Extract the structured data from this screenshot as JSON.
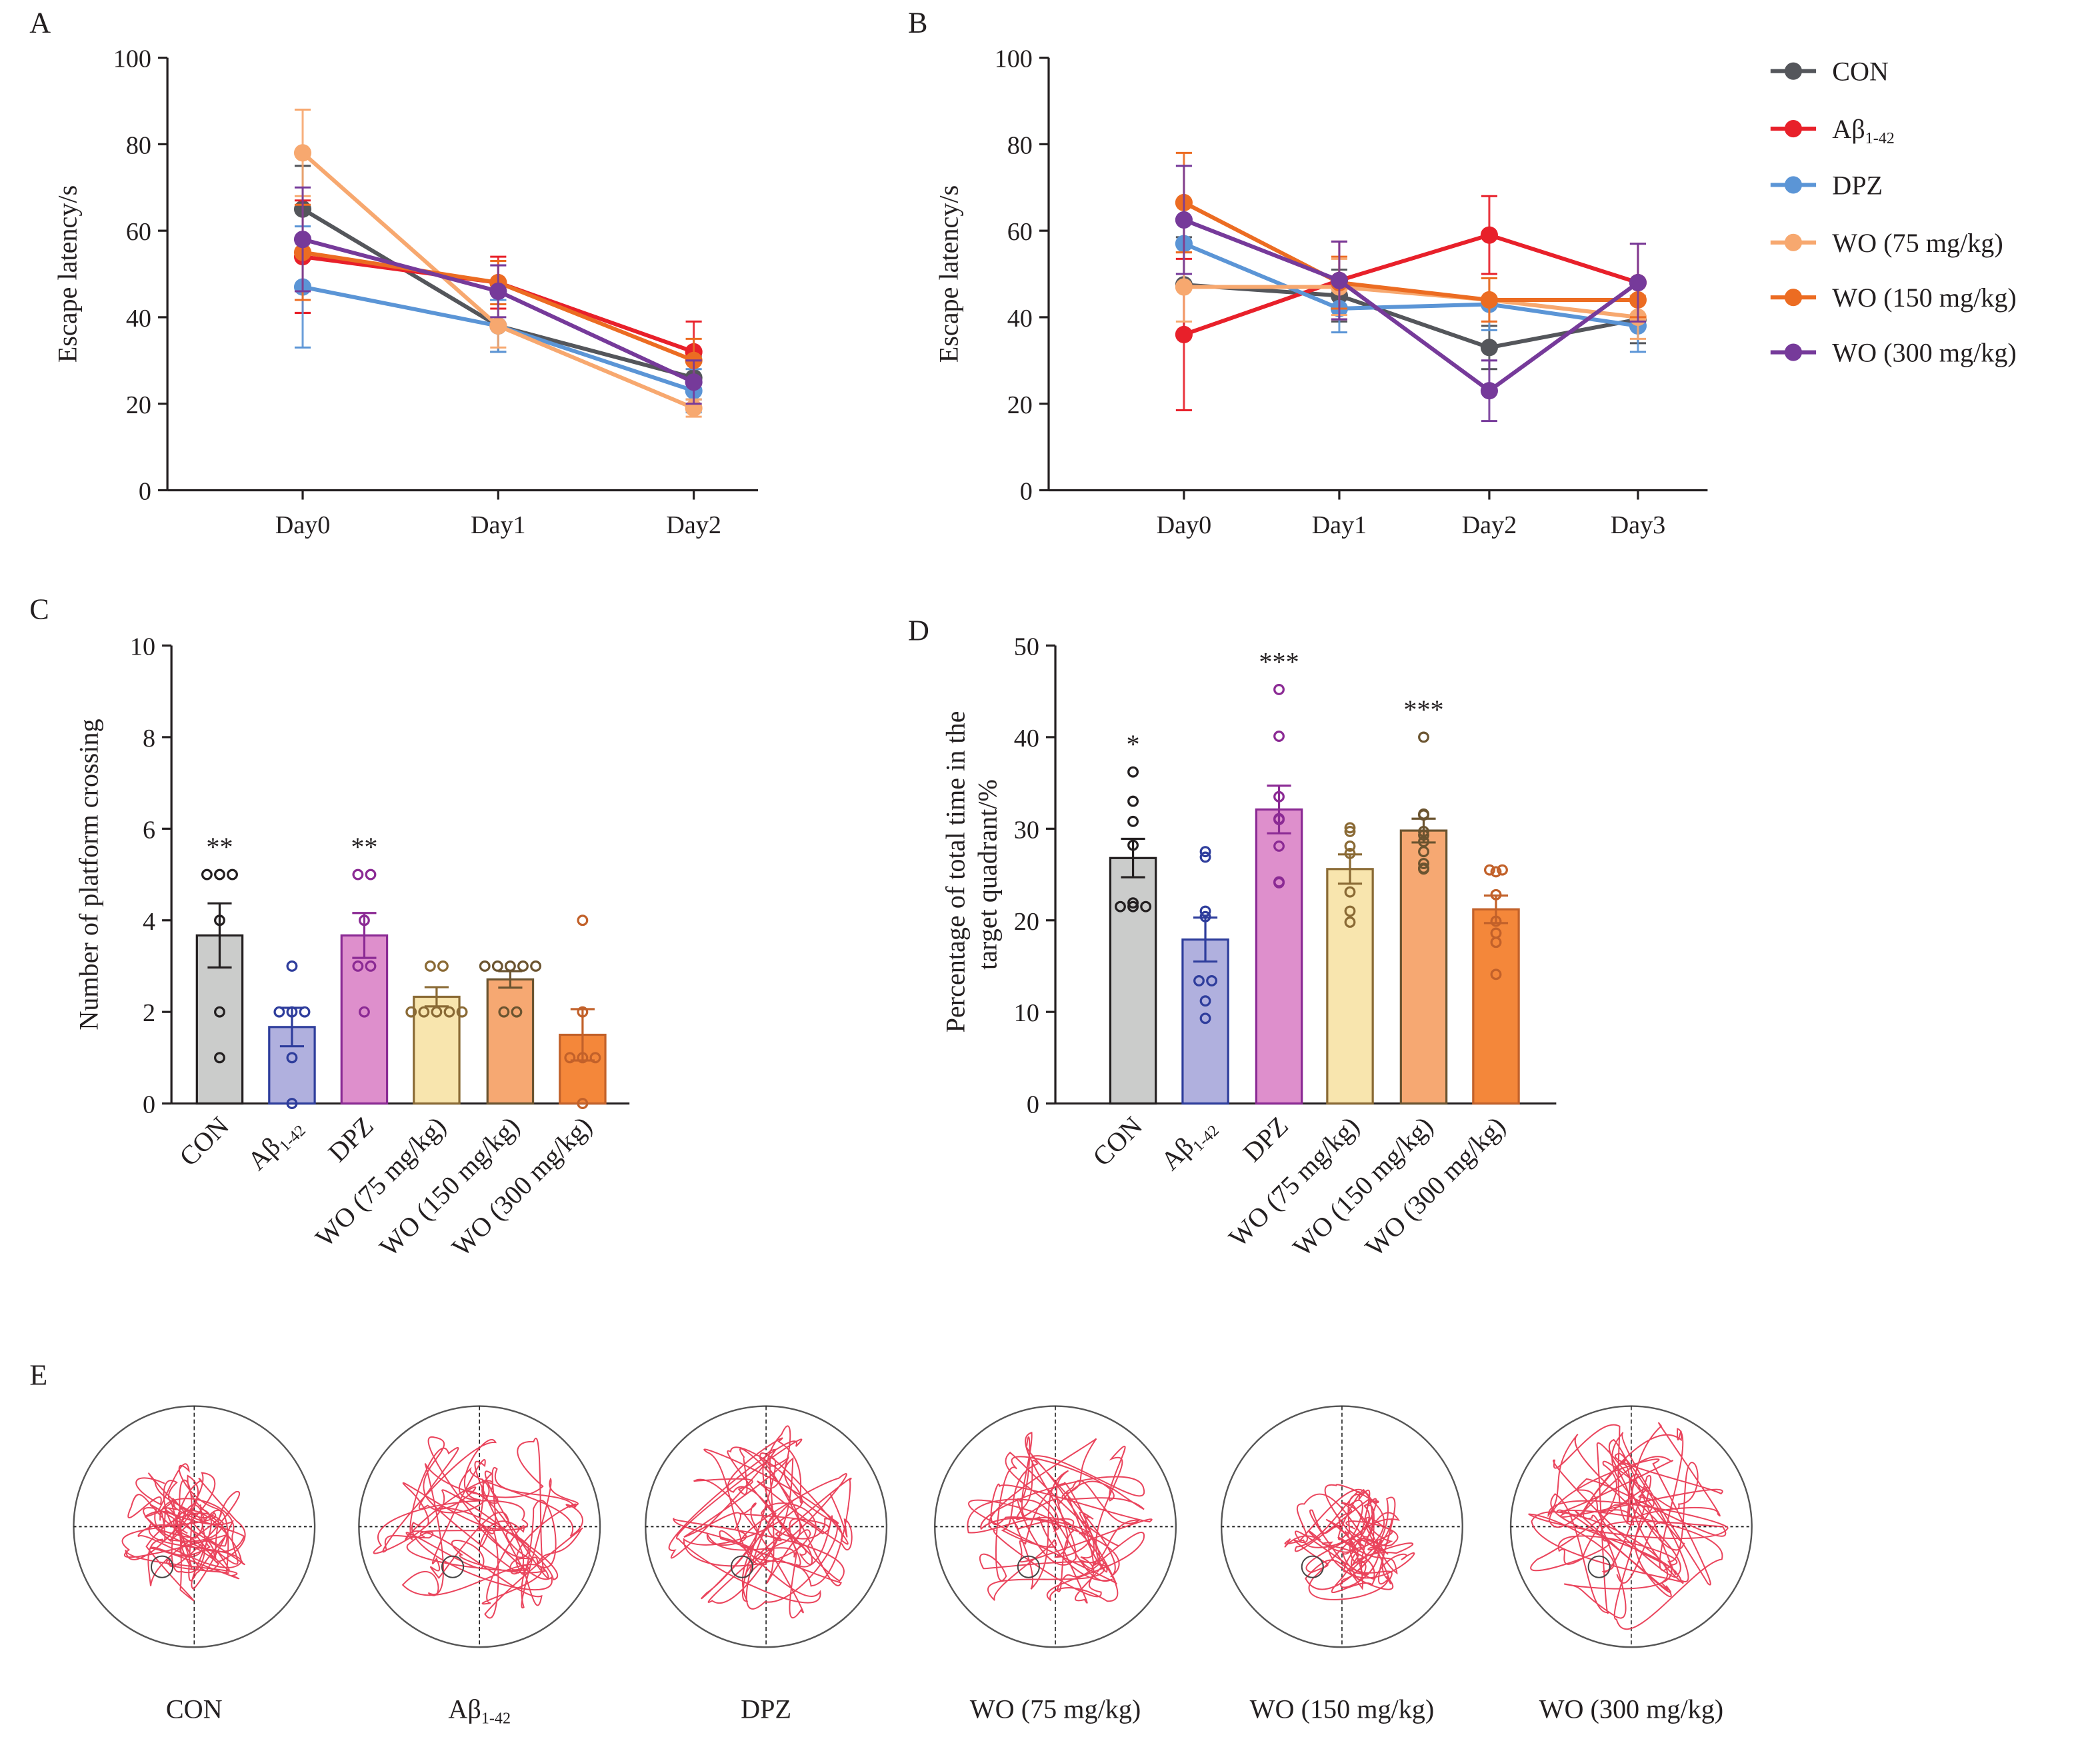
{
  "figure": {
    "panels": [
      "A",
      "B",
      "C",
      "D",
      "E"
    ]
  },
  "groups": [
    {
      "name": "CON",
      "sub": "",
      "color": "#54565b",
      "bar_fill": "#cbcccb",
      "bar_edge": "#231f20",
      "dot": "#231f20"
    },
    {
      "name": "Aβ",
      "sub": "1-42",
      "color": "#e8202a",
      "bar_fill": "#b0b0de",
      "bar_edge": "#2e3d9c",
      "dot": "#2e3d9c"
    },
    {
      "name": "DPZ",
      "sub": "",
      "color": "#5b95d6",
      "bar_fill": "#de8fcc",
      "bar_edge": "#8b2a94",
      "dot": "#8b2a94"
    },
    {
      "name": "WO (75 mg/kg)",
      "sub": "",
      "color": "#f7a86f",
      "bar_fill": "#f8e5ae",
      "bar_edge": "#8a6a35",
      "dot": "#8a6a35"
    },
    {
      "name": "WO (150 mg/kg)",
      "sub": "",
      "color": "#ec6c22",
      "bar_fill": "#f6a872",
      "bar_edge": "#6b5430",
      "dot": "#6b5430"
    },
    {
      "name": "WO (300 mg/kg)",
      "sub": "",
      "color": "#763a9a",
      "bar_fill": "#f4873a",
      "bar_edge": "#c2612a",
      "dot": "#c2612a"
    }
  ],
  "chart_data": [
    {
      "panel": "A",
      "type": "line",
      "title": "",
      "xlabel": "",
      "ylabel": "Escape latency/s",
      "categories": [
        "Day0",
        "Day1",
        "Day2"
      ],
      "ylim": [
        0,
        100
      ],
      "yticks": [
        0,
        20,
        40,
        60,
        80,
        100
      ],
      "grid": false,
      "series": [
        {
          "name": "CON",
          "values": [
            65,
            38,
            26
          ],
          "err": [
            10,
            6,
            5
          ]
        },
        {
          "name": "Aβ1-42",
          "values": [
            54,
            48,
            32
          ],
          "err": [
            13,
            6,
            7
          ]
        },
        {
          "name": "DPZ",
          "values": [
            47,
            38,
            23
          ],
          "err": [
            14,
            6,
            5
          ]
        },
        {
          "name": "WO (75 mg/kg)",
          "values": [
            78,
            38,
            19
          ],
          "err": [
            10,
            5,
            2
          ]
        },
        {
          "name": "WO (150 mg/kg)",
          "values": [
            55,
            48,
            30
          ],
          "err": [
            11,
            5,
            5
          ]
        },
        {
          "name": "WO (300 mg/kg)",
          "values": [
            58,
            46,
            25
          ],
          "err": [
            12,
            6,
            5
          ]
        }
      ]
    },
    {
      "panel": "B",
      "type": "line",
      "title": "",
      "xlabel": "",
      "ylabel": "Escape latency/s",
      "categories": [
        "Day0",
        "Day1",
        "Day2",
        "Day3"
      ],
      "ylim": [
        0,
        100
      ],
      "yticks": [
        0,
        20,
        40,
        60,
        80,
        100
      ],
      "grid": false,
      "legend": "right",
      "series": [
        {
          "name": "CON",
          "values": [
            47.5,
            45,
            33,
            39.5
          ],
          "err": [
            11,
            6,
            5,
            5.5
          ]
        },
        {
          "name": "Aβ1-42",
          "values": [
            36,
            48.5,
            59,
            48
          ],
          "err": [
            17.5,
            9,
            9,
            9
          ]
        },
        {
          "name": "DPZ",
          "values": [
            57,
            42,
            43,
            38
          ],
          "err": [
            10,
            5.5,
            6,
            6
          ]
        },
        {
          "name": "WO (75 mg/kg)",
          "values": [
            47,
            47,
            44,
            40
          ],
          "err": [
            8,
            6.5,
            5,
            5
          ]
        },
        {
          "name": "WO (150 mg/kg)",
          "values": [
            66.5,
            48,
            44,
            44
          ],
          "err": [
            11.5,
            6,
            5,
            4
          ]
        },
        {
          "name": "WO (300 mg/kg)",
          "values": [
            62.5,
            48.5,
            23,
            48
          ],
          "err": [
            12.5,
            9,
            7,
            9
          ]
        }
      ]
    },
    {
      "panel": "C",
      "type": "bar",
      "title": "",
      "xlabel": "",
      "ylabel": "Number of platform crossing",
      "categories": [
        "CON",
        "Aβ1-42",
        "DPZ",
        "WO (75 mg/kg)",
        "WO (150 mg/kg)",
        "WO (300 mg/kg)"
      ],
      "ylim": [
        0,
        10
      ],
      "yticks": [
        0,
        2,
        4,
        6,
        8,
        10
      ],
      "values": [
        3.67,
        1.67,
        3.67,
        2.33,
        2.71,
        1.5
      ],
      "err": [
        0.7,
        0.42,
        0.49,
        0.21,
        0.18,
        0.56
      ],
      "points": [
        [
          5,
          5,
          5,
          4,
          2,
          1
        ],
        [
          3,
          2,
          2,
          2,
          1,
          0
        ],
        [
          5,
          5,
          4,
          3,
          3,
          2
        ],
        [
          3,
          3,
          2,
          2,
          2,
          2,
          2
        ],
        [
          3,
          3,
          3,
          3,
          3,
          2,
          2
        ],
        [
          4,
          2,
          1,
          1,
          1,
          0
        ]
      ],
      "significance": [
        "**",
        "",
        "**",
        "",
        "",
        ""
      ]
    },
    {
      "panel": "D",
      "type": "bar",
      "title": "",
      "xlabel": "",
      "ylabel": "Percentage of total time in the target quadrant/%",
      "ylabel_lines": [
        "Percentage of total time in the",
        "target quadrant/%"
      ],
      "categories": [
        "CON",
        "Aβ1-42",
        "DPZ",
        "WO (75 mg/kg)",
        "WO (150 mg/kg)",
        "WO (300 mg/kg)"
      ],
      "ylim": [
        0,
        50
      ],
      "yticks": [
        0,
        10,
        20,
        30,
        40,
        50
      ],
      "values": [
        26.8,
        17.9,
        32.1,
        25.6,
        29.8,
        21.2
      ],
      "err": [
        2.1,
        2.4,
        2.6,
        1.6,
        1.3,
        1.5
      ],
      "points": [
        [
          36.2,
          33,
          30.8,
          28.2,
          21.9,
          21.5,
          21.5,
          21.5
        ],
        [
          27.5,
          26.9,
          21,
          20.4,
          13.4,
          13.4,
          11.2,
          9.3
        ],
        [
          45.2,
          40.1,
          33.5,
          31.1,
          31,
          28.1,
          24.2,
          24.1
        ],
        [
          30.1,
          29.7,
          28.1,
          27.3,
          23.1,
          21,
          19.8
        ],
        [
          40,
          31.6,
          31.5,
          29.7,
          29.3,
          28.6,
          27.5,
          26.2,
          25.6,
          25.7
        ],
        [
          25.5,
          25.3,
          25.5,
          22.8,
          19.9,
          18.6,
          17.6,
          14.1
        ]
      ],
      "significance": [
        "*",
        "",
        "***",
        "",
        "***",
        ""
      ]
    }
  ],
  "tracks": {
    "panel": "E",
    "labels": [
      "CON",
      "Aβ",
      "DPZ",
      "WO (75 mg/kg)",
      "WO (150 mg/kg)",
      "WO (300 mg/kg)"
    ],
    "subs": [
      "",
      "1-42",
      "",
      "",
      "",
      ""
    ],
    "path_color": "#e8304a"
  }
}
